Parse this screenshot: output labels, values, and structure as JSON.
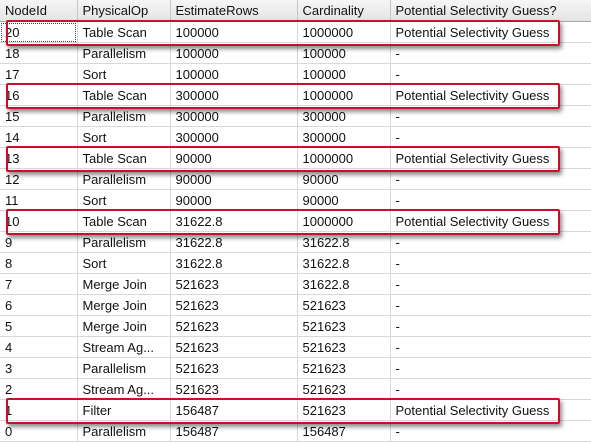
{
  "grid": {
    "columns": [
      "NodeId",
      "PhysicalOp",
      "EstimateRows",
      "Cardinality",
      "Potential Selectivity Guess?"
    ],
    "rows": [
      [
        "20",
        "Table Scan",
        "100000",
        "1000000",
        "Potential Selectivity Guess"
      ],
      [
        "18",
        "Parallelism",
        "100000",
        "100000",
        "-"
      ],
      [
        "17",
        "Sort",
        "100000",
        "100000",
        "-"
      ],
      [
        "16",
        "Table Scan",
        "300000",
        "1000000",
        "Potential Selectivity Guess"
      ],
      [
        "15",
        "Parallelism",
        "300000",
        "300000",
        "-"
      ],
      [
        "14",
        "Sort",
        "300000",
        "300000",
        "-"
      ],
      [
        "13",
        "Table Scan",
        "90000",
        "1000000",
        "Potential Selectivity Guess"
      ],
      [
        "12",
        "Parallelism",
        "90000",
        "90000",
        "-"
      ],
      [
        "11",
        "Sort",
        "90000",
        "90000",
        "-"
      ],
      [
        "10",
        "Table Scan",
        "31622.8",
        "1000000",
        "Potential Selectivity Guess"
      ],
      [
        "9",
        "Parallelism",
        "31622.8",
        "31622.8",
        "-"
      ],
      [
        "8",
        "Sort",
        "31622.8",
        "31622.8",
        "-"
      ],
      [
        "7",
        "Merge Join",
        "521623",
        "31622.8",
        "-"
      ],
      [
        "6",
        "Merge Join",
        "521623",
        "521623",
        "-"
      ],
      [
        "5",
        "Merge Join",
        "521623",
        "521623",
        "-"
      ],
      [
        "4",
        "Stream Ag...",
        "521623",
        "521623",
        "-"
      ],
      [
        "3",
        "Parallelism",
        "521623",
        "521623",
        "-"
      ],
      [
        "2",
        "Stream Ag...",
        "521623",
        "521623",
        "-"
      ],
      [
        "1",
        "Filter",
        "156487",
        "521623",
        "Potential Selectivity Guess"
      ],
      [
        "0",
        "Parallelism",
        "156487",
        "156487",
        "-"
      ]
    ],
    "highlighted_node_ids": [
      "20",
      "16",
      "13",
      "10",
      "1"
    ]
  },
  "colors": {
    "highlight_border": "#c8102e",
    "header_bg": "#e8e8e8",
    "grid_line": "#d8d8d8"
  }
}
